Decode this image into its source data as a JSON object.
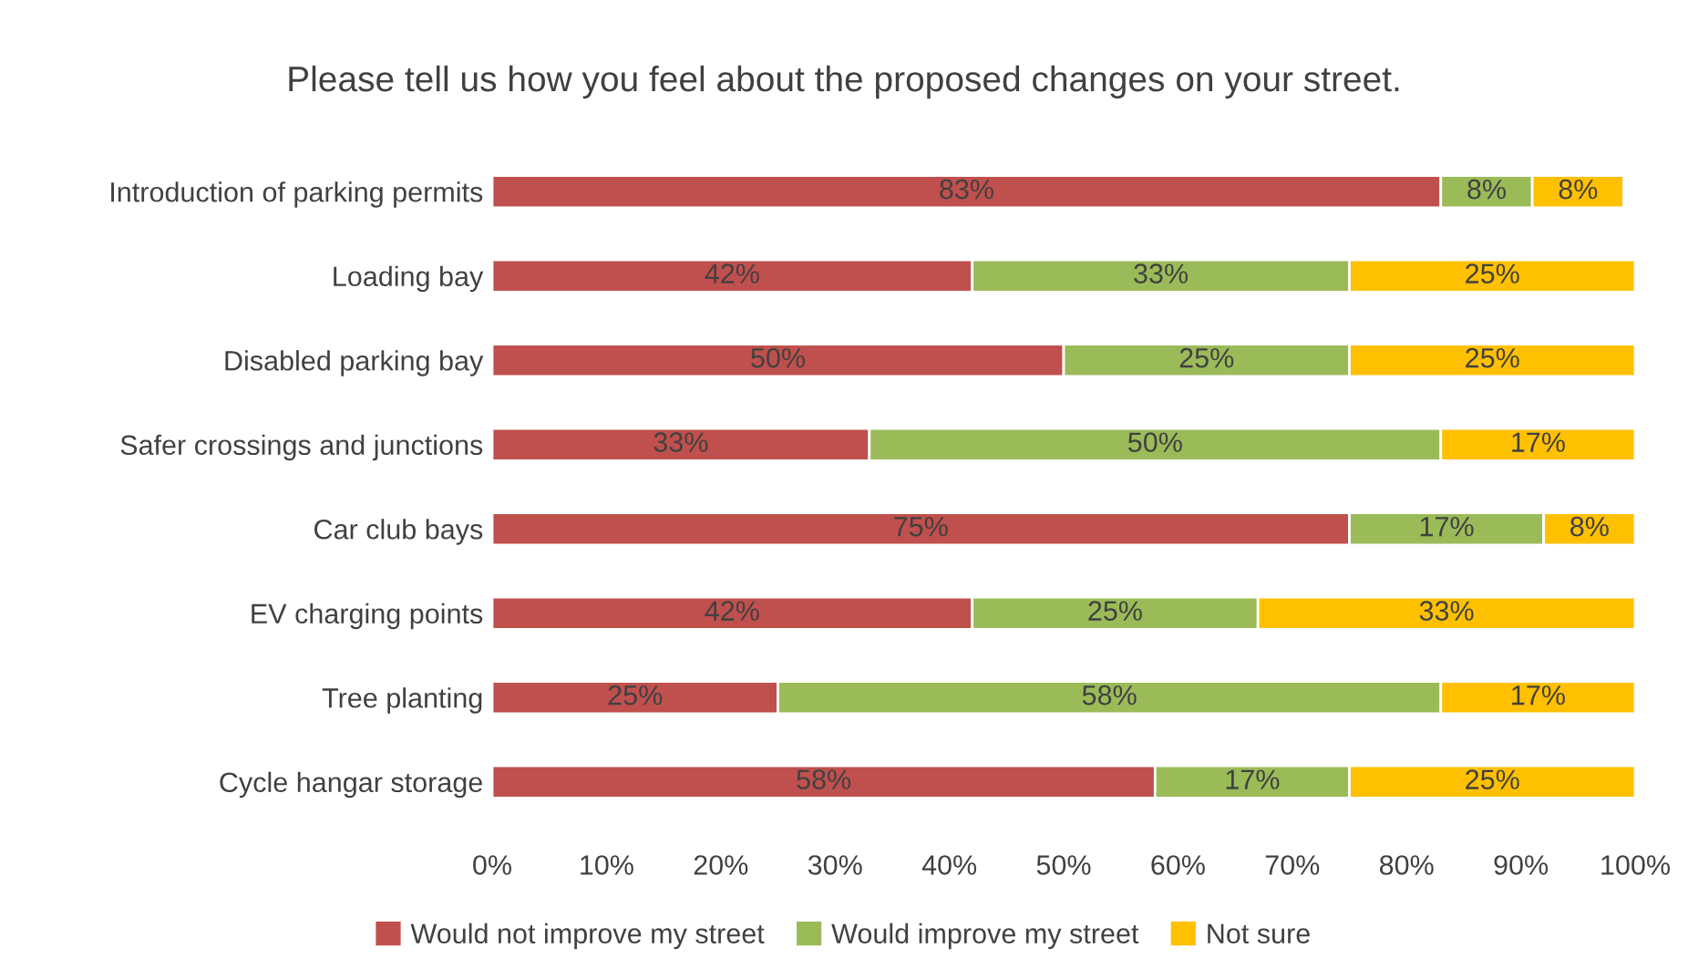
{
  "chart_data": {
    "type": "bar",
    "orientation": "horizontal",
    "stacked": true,
    "title": "Please tell us how you feel about the proposed changes on your street.",
    "categories": [
      "Introduction of parking permits",
      "Loading bay",
      "Disabled parking bay",
      "Safer crossings and junctions",
      "Car club bays",
      "EV charging points",
      "Tree planting",
      "Cycle hangar storage"
    ],
    "series": [
      {
        "name": "Would not improve my street",
        "color": "#c0504d",
        "values": [
          83,
          42,
          50,
          33,
          75,
          42,
          25,
          58
        ],
        "value_labels": [
          "83%",
          "42%",
          "50%",
          "33%",
          "75%",
          "42%",
          "25%",
          "58%"
        ]
      },
      {
        "name": "Would improve my street",
        "color": "#9bbb59",
        "values": [
          8,
          33,
          25,
          50,
          17,
          25,
          58,
          17
        ],
        "value_labels": [
          "8%",
          "33%",
          "25%",
          "50%",
          "17%",
          "25%",
          "58%",
          "17%"
        ]
      },
      {
        "name": "Not sure",
        "color": "#ffc000",
        "values": [
          8,
          25,
          25,
          17,
          8,
          33,
          17,
          25
        ],
        "value_labels": [
          "8%",
          "25%",
          "25%",
          "17%",
          "8%",
          "33%",
          "17%",
          "25%"
        ]
      }
    ],
    "xlim": [
      0,
      100
    ],
    "xticks": [
      {
        "value": 0,
        "label": "0%"
      },
      {
        "value": 10,
        "label": "10%"
      },
      {
        "value": 20,
        "label": "20%"
      },
      {
        "value": 30,
        "label": "30%"
      },
      {
        "value": 40,
        "label": "40%"
      },
      {
        "value": 50,
        "label": "50%"
      },
      {
        "value": 60,
        "label": "60%"
      },
      {
        "value": 70,
        "label": "70%"
      },
      {
        "value": 80,
        "label": "80%"
      },
      {
        "value": 90,
        "label": "90%"
      },
      {
        "value": 100,
        "label": "100%"
      }
    ],
    "legend": "bottom",
    "grid": false
  }
}
